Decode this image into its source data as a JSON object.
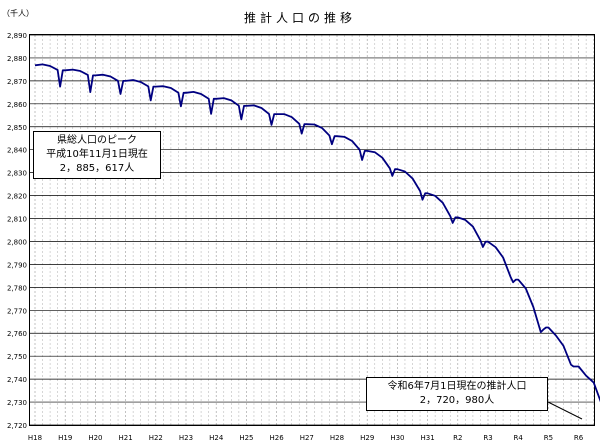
{
  "chart_data": {
    "type": "line",
    "title": "推計人口の推移",
    "ylabel": "（千人）",
    "xlabel": "",
    "ylim": [
      2720,
      2890
    ],
    "y_ticks": [
      2720,
      2730,
      2740,
      2750,
      2760,
      2770,
      2780,
      2790,
      2800,
      2810,
      2820,
      2830,
      2840,
      2850,
      2860,
      2870,
      2880,
      2890
    ],
    "x_ticks": [
      "H18",
      "H19",
      "H20",
      "H21",
      "H22",
      "H23",
      "H24",
      "H25",
      "H26",
      "H27",
      "H28",
      "H29",
      "H30",
      "H31",
      "R2",
      "R3",
      "R4",
      "R5",
      "R6"
    ],
    "grid": true,
    "line_color": "#000080",
    "series": [
      {
        "x": [
          0,
          0.25,
          0.5,
          0.75,
          0.83,
          0.92,
          1,
          1.25,
          1.5,
          1.75,
          1.83,
          1.92,
          2,
          2.25,
          2.5,
          2.75,
          2.83,
          2.92,
          3,
          3.25,
          3.5,
          3.75,
          3.83,
          3.92,
          4,
          4.25,
          4.5,
          4.75,
          4.83,
          4.92,
          5,
          5.25,
          5.5,
          5.75,
          5.83,
          5.92,
          6,
          6.25,
          6.5,
          6.75,
          6.83,
          6.92,
          7,
          7.25,
          7.5,
          7.75,
          7.83,
          7.92,
          8,
          8.25,
          8.5,
          8.75,
          8.83,
          8.92,
          9,
          9.25,
          9.5,
          9.75,
          9.83,
          9.92,
          10,
          10.25,
          10.5,
          10.75,
          10.83,
          10.92,
          11,
          11.25,
          11.5,
          11.75,
          11.83,
          11.92,
          12,
          12.25,
          12.5,
          12.75,
          12.83,
          12.92,
          13,
          13.25,
          13.5,
          13.75,
          13.83,
          13.92,
          14,
          14.25,
          14.5,
          14.75,
          14.83,
          14.92,
          15,
          15.25,
          15.5,
          15.75,
          15.83,
          15.92,
          16,
          16.25,
          16.5,
          16.75,
          16.83,
          16.92,
          17,
          17.25,
          17.5,
          17.75,
          17.83,
          17.92,
          18,
          18.25,
          18.5,
          18.75,
          18.83,
          18.92
        ],
        "values": [
          2876.8,
          2877.2,
          2876.5,
          2874.8,
          2867.5,
          2874.6,
          2874.6,
          2874.9,
          2874.3,
          2872.6,
          2865.1,
          2872.4,
          2872.4,
          2872.7,
          2871.9,
          2870,
          2864.3,
          2870,
          2870,
          2870.4,
          2869.5,
          2867.6,
          2861.5,
          2867.5,
          2867.5,
          2867.7,
          2866.9,
          2864.8,
          2858.9,
          2864.8,
          2864.8,
          2865.2,
          2864.3,
          2862.2,
          2855.6,
          2862.2,
          2862.2,
          2862.5,
          2861.5,
          2859.2,
          2853.2,
          2859.1,
          2859.1,
          2859.3,
          2858.2,
          2855.6,
          2850.8,
          2855.5,
          2855.5,
          2855.5,
          2854.2,
          2851.3,
          2847,
          2851.1,
          2851.1,
          2851,
          2849.5,
          2846.2,
          2842.4,
          2845.9,
          2845.9,
          2845.6,
          2843.8,
          2840,
          2835.5,
          2839.5,
          2839.5,
          2838.9,
          2836.5,
          2831.9,
          2828.6,
          2831.5,
          2831.5,
          2830.5,
          2827.5,
          2822,
          2818.2,
          2821,
          2821,
          2819.9,
          2816.9,
          2811,
          2808.1,
          2810.5,
          2810.5,
          2809.4,
          2806.5,
          2800.5,
          2797.6,
          2799.9,
          2799.9,
          2797.5,
          2793,
          2784.5,
          2782.2,
          2783.4,
          2783.4,
          2779.5,
          2771.5,
          2760.5,
          2761.6,
          2762.5,
          2762.5,
          2759,
          2754.5,
          2746.3,
          2745.5,
          2745.5,
          2745.5,
          2741.5,
          2738.5,
          2729.5,
          2723.5,
          2720.98
        ]
      }
    ],
    "annotations": [
      {
        "lines": [
          "県総人口のピーク",
          "平成10年11月1日現在",
          "2，885，617人"
        ]
      },
      {
        "lines": [
          "令和6年7月1日現在の推計人口",
          "2，720，980人"
        ]
      }
    ]
  }
}
